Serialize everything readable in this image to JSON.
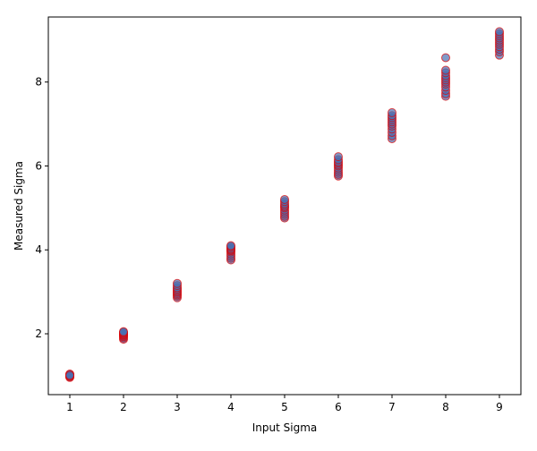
{
  "chart_data": {
    "type": "scatter",
    "title": "",
    "xlabel": "Input Sigma",
    "ylabel": "Measured Sigma",
    "xlim": [
      0.6,
      9.4
    ],
    "ylim": [
      0.55,
      9.55
    ],
    "xticks": [
      1,
      2,
      3,
      4,
      5,
      6,
      7,
      8,
      9
    ],
    "yticks": [
      2,
      4,
      6,
      8
    ],
    "grid": false,
    "legend": "none",
    "marker": {
      "face_color": "#4a6fb0",
      "edge_color": "#e00000",
      "opacity": 0.7
    },
    "series": [
      {
        "points": [
          [
            1,
            0.96
          ],
          [
            1,
            0.98
          ],
          [
            1,
            1.0
          ],
          [
            1,
            1.0
          ],
          [
            1,
            1.01
          ],
          [
            1,
            1.02
          ],
          [
            1,
            1.03
          ],
          [
            1,
            1.04
          ],
          [
            1,
            0.99
          ],
          [
            1,
            1.01
          ],
          [
            2,
            1.87
          ],
          [
            2,
            1.9
          ],
          [
            2,
            1.93
          ],
          [
            2,
            1.95
          ],
          [
            2,
            1.97
          ],
          [
            2,
            1.98
          ],
          [
            2,
            2.0
          ],
          [
            2,
            2.01
          ],
          [
            2,
            2.02
          ],
          [
            2,
            2.04
          ],
          [
            2,
            2.05
          ],
          [
            3,
            2.86
          ],
          [
            3,
            2.9
          ],
          [
            3,
            2.93
          ],
          [
            3,
            2.96
          ],
          [
            3,
            2.99
          ],
          [
            3,
            3.01
          ],
          [
            3,
            3.04
          ],
          [
            3,
            3.07
          ],
          [
            3,
            3.1
          ],
          [
            3,
            3.15
          ],
          [
            3,
            3.2
          ],
          [
            4,
            3.76
          ],
          [
            4,
            3.8
          ],
          [
            4,
            3.85
          ],
          [
            4,
            3.9
          ],
          [
            4,
            3.95
          ],
          [
            4,
            3.98
          ],
          [
            4,
            4.0
          ],
          [
            4,
            4.02
          ],
          [
            4,
            4.05
          ],
          [
            4,
            4.08
          ],
          [
            4,
            4.1
          ],
          [
            5,
            4.76
          ],
          [
            5,
            4.8
          ],
          [
            5,
            4.85
          ],
          [
            5,
            4.9
          ],
          [
            5,
            4.95
          ],
          [
            5,
            5.0
          ],
          [
            5,
            5.03
          ],
          [
            5,
            5.06
          ],
          [
            5,
            5.1
          ],
          [
            5,
            5.15
          ],
          [
            5,
            5.2
          ],
          [
            6,
            5.76
          ],
          [
            6,
            5.8
          ],
          [
            6,
            5.85
          ],
          [
            6,
            5.9
          ],
          [
            6,
            5.95
          ],
          [
            6,
            6.0
          ],
          [
            6,
            6.03
          ],
          [
            6,
            6.07
          ],
          [
            6,
            6.1
          ],
          [
            6,
            6.15
          ],
          [
            6,
            6.22
          ],
          [
            7,
            6.65
          ],
          [
            7,
            6.72
          ],
          [
            7,
            6.8
          ],
          [
            7,
            6.88
          ],
          [
            7,
            6.95
          ],
          [
            7,
            7.0
          ],
          [
            7,
            7.05
          ],
          [
            7,
            7.1
          ],
          [
            7,
            7.15
          ],
          [
            7,
            7.2
          ],
          [
            7,
            7.27
          ],
          [
            8,
            7.66
          ],
          [
            8,
            7.72
          ],
          [
            8,
            7.8
          ],
          [
            8,
            7.88
          ],
          [
            8,
            7.95
          ],
          [
            8,
            8.0
          ],
          [
            8,
            8.05
          ],
          [
            8,
            8.1
          ],
          [
            8,
            8.15
          ],
          [
            8,
            8.22
          ],
          [
            8,
            8.28
          ],
          [
            8,
            8.58
          ],
          [
            9,
            8.64
          ],
          [
            9,
            8.72
          ],
          [
            9,
            8.78
          ],
          [
            9,
            8.84
          ],
          [
            9,
            8.9
          ],
          [
            9,
            8.95
          ],
          [
            9,
            9.0
          ],
          [
            9,
            9.05
          ],
          [
            9,
            9.1
          ],
          [
            9,
            9.15
          ],
          [
            9,
            9.2
          ]
        ]
      }
    ]
  }
}
